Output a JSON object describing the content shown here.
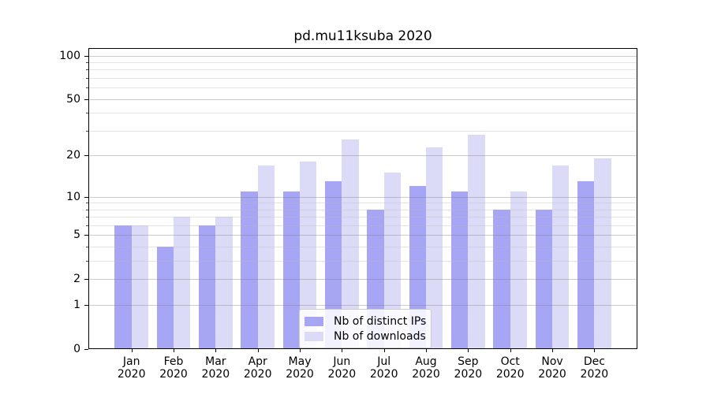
{
  "title": "pd.mu11ksuba 2020",
  "chart_data": {
    "type": "bar",
    "categories": [
      {
        "month": "Jan",
        "year": "2020"
      },
      {
        "month": "Feb",
        "year": "2020"
      },
      {
        "month": "Mar",
        "year": "2020"
      },
      {
        "month": "Apr",
        "year": "2020"
      },
      {
        "month": "May",
        "year": "2020"
      },
      {
        "month": "Jun",
        "year": "2020"
      },
      {
        "month": "Jul",
        "year": "2020"
      },
      {
        "month": "Aug",
        "year": "2020"
      },
      {
        "month": "Sep",
        "year": "2020"
      },
      {
        "month": "Oct",
        "year": "2020"
      },
      {
        "month": "Nov",
        "year": "2020"
      },
      {
        "month": "Dec",
        "year": "2020"
      }
    ],
    "series": [
      {
        "name": "Nb of distinct IPs",
        "color": "#a6a6f5",
        "values": [
          6,
          4,
          6,
          11,
          11,
          13,
          8,
          12,
          11,
          8,
          8,
          13
        ]
      },
      {
        "name": "Nb of downloads",
        "color": "#dbdbf8",
        "values": [
          6,
          7,
          7,
          17,
          18,
          26,
          15,
          23,
          28,
          11,
          17,
          19
        ]
      }
    ],
    "yscale": "log1p",
    "y_major_ticks": [
      100,
      50,
      20,
      10,
      5,
      2,
      1,
      0
    ],
    "y_minor_ticks": [
      3,
      4,
      6,
      7,
      8,
      9,
      30,
      40,
      60,
      70,
      80,
      90
    ],
    "ylim": [
      0,
      113
    ],
    "grid": "on",
    "legend_position": "lower center"
  }
}
